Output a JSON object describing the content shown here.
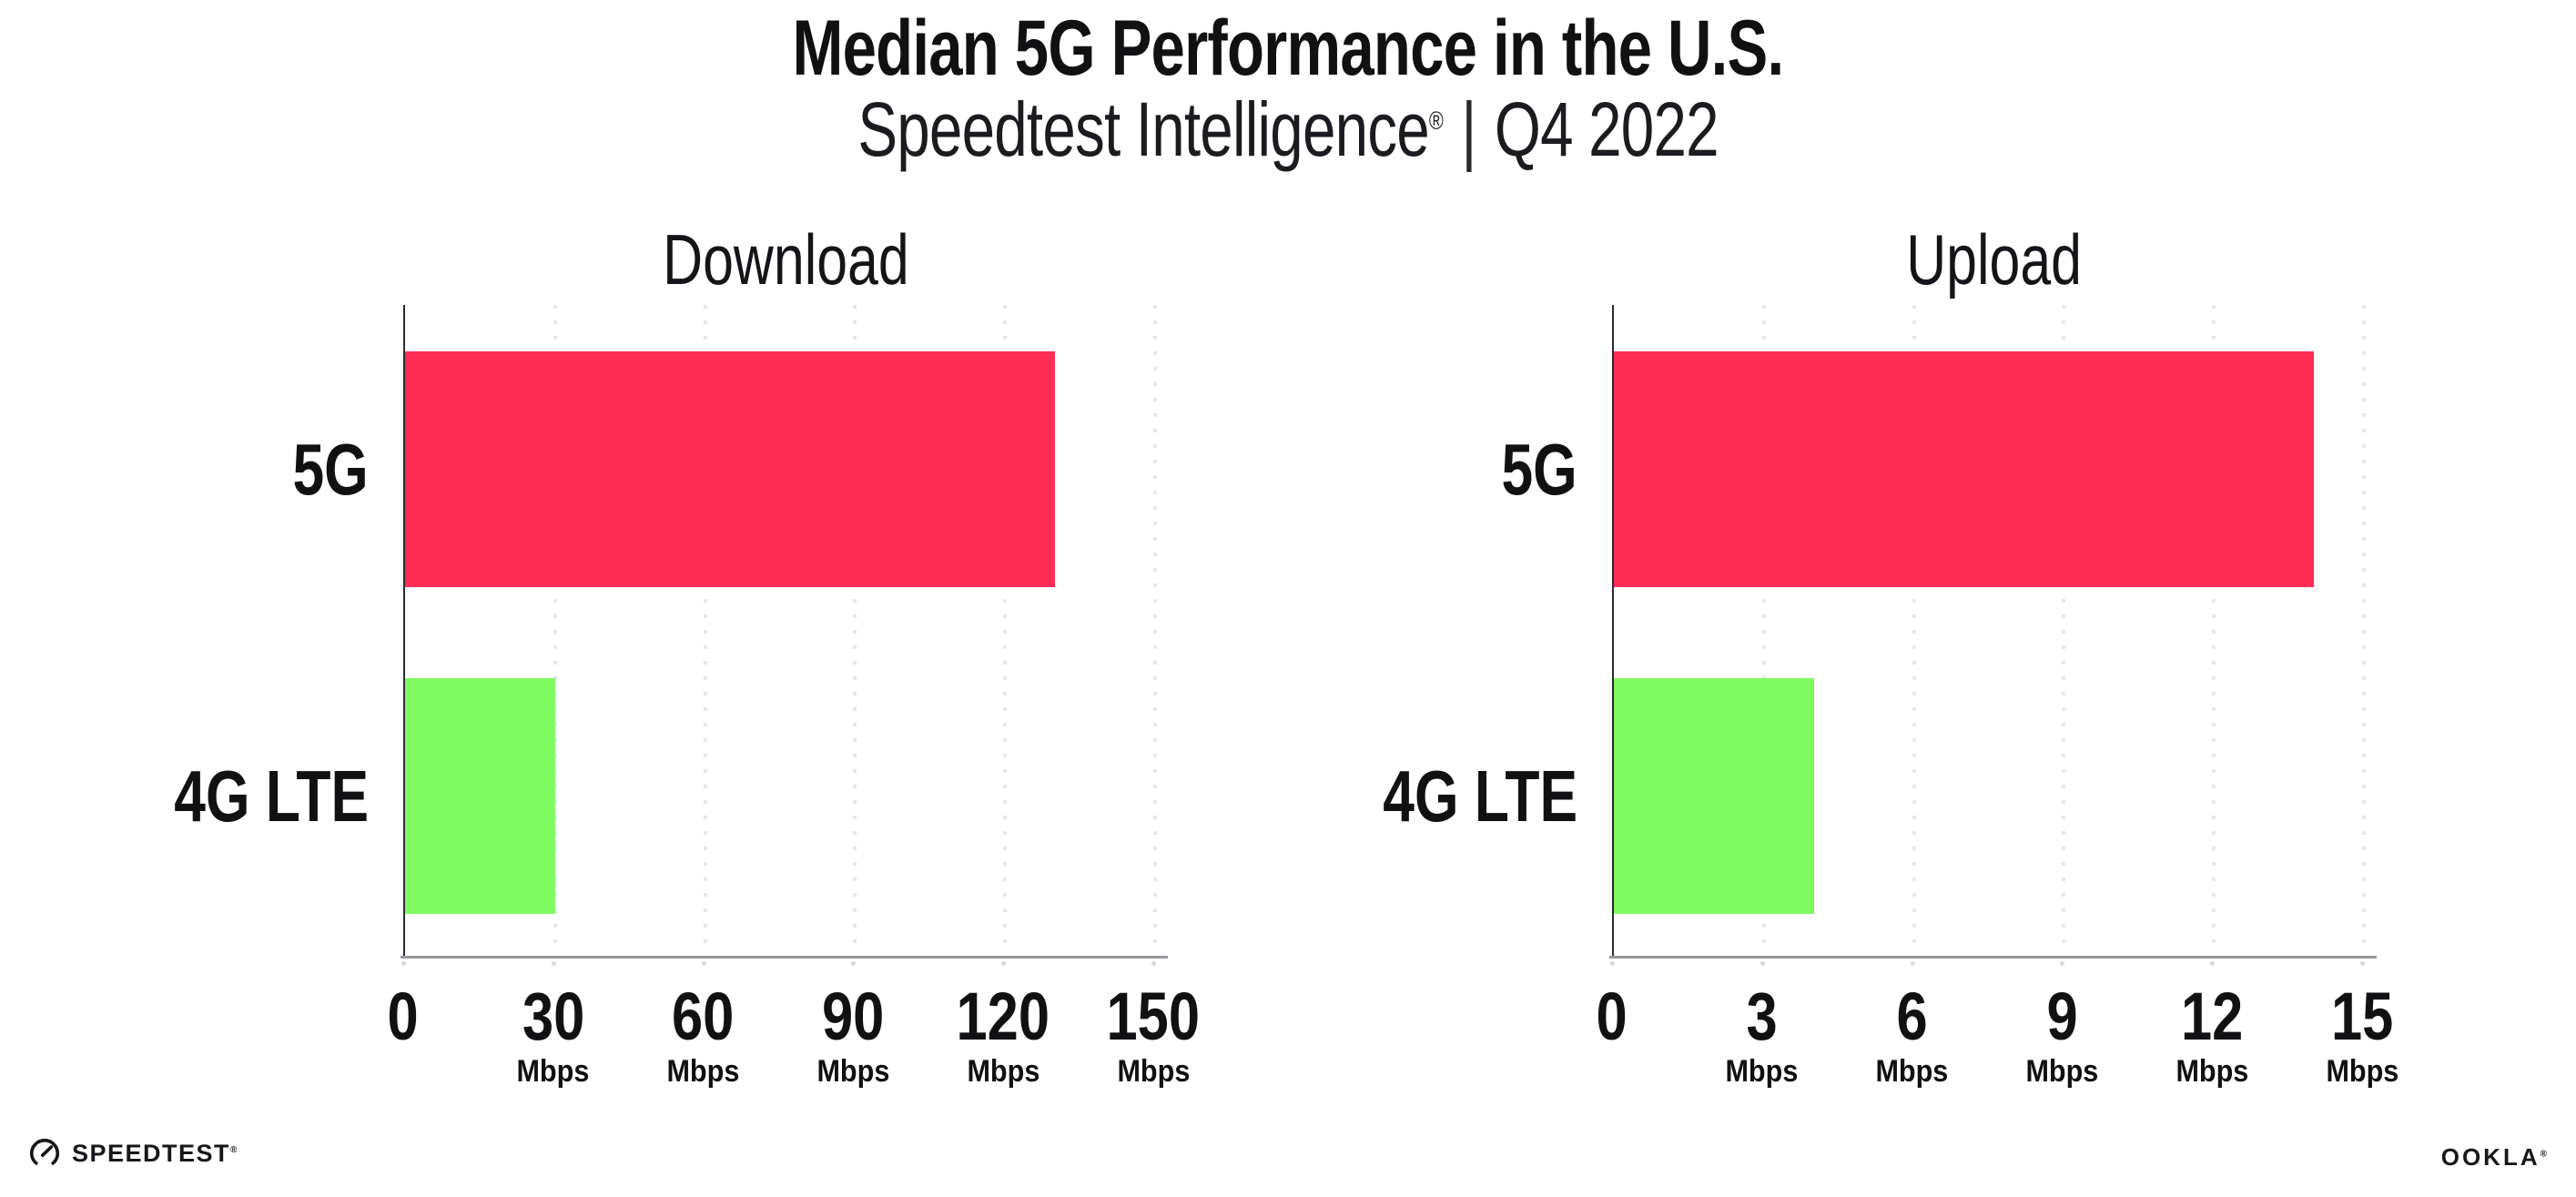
{
  "header": {
    "title": "Median 5G Performance in the U.S.",
    "subtitle_brand": "Speedtest Intelligence",
    "subtitle_reg": "®",
    "subtitle_sep": "|",
    "subtitle_period": "Q4 2022"
  },
  "chart_data": [
    {
      "type": "bar",
      "orientation": "horizontal",
      "title": "Download",
      "categories": [
        "5G",
        "4G LTE"
      ],
      "values": [
        130,
        30
      ],
      "unit": "Mbps",
      "xlim": [
        0,
        150
      ],
      "ticks": [
        0,
        30,
        60,
        90,
        120,
        150
      ],
      "series_colors": [
        "#ff2d55",
        "#80fb61"
      ],
      "grid": "dotted-vertical",
      "legend": "none"
    },
    {
      "type": "bar",
      "orientation": "horizontal",
      "title": "Upload",
      "categories": [
        "5G",
        "4G LTE"
      ],
      "values": [
        14,
        4
      ],
      "unit": "Mbps",
      "xlim": [
        0,
        15
      ],
      "ticks": [
        0,
        3,
        6,
        9,
        12,
        15
      ],
      "series_colors": [
        "#ff2d55",
        "#80fb61"
      ],
      "grid": "dotted-vertical",
      "legend": "none"
    }
  ],
  "footer": {
    "speedtest_label": "SPEEDTEST",
    "speedtest_reg": "®",
    "ookla_label": "OOKLA",
    "ookla_reg": "®"
  },
  "colors": {
    "bar_5g": "#ff2d55",
    "bar_4g_lte": "#80fb61",
    "y_axis": "#2a2a31",
    "x_axis": "#98989f",
    "gridline": "#e6e6ef",
    "text": "#141419",
    "background": "#ffffff"
  }
}
